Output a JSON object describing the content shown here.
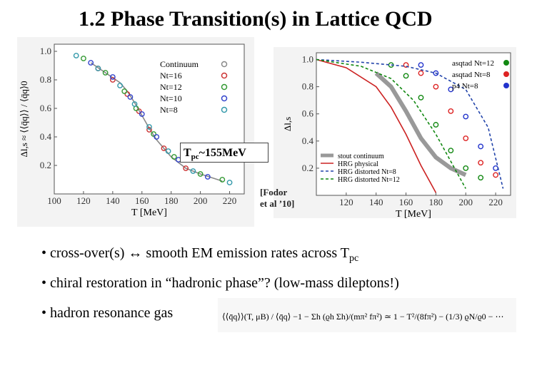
{
  "slide": {
    "title": "1.2 Phase Transition(s) in Lattice QCD",
    "tpc_label": "T",
    "tpc_sub": "pc",
    "tpc_value": "~155MeV",
    "citation_line1": "[Fodor",
    "citation_line2": "et al ’10]",
    "bullets": [
      {
        "text": "• cross-over(s) ↔ smooth EM emission rates across T",
        "sub": "pc"
      },
      {
        "text": "• chiral restoration in “hadronic phase”?  (low-mass dileptons!)"
      },
      {
        "text": "• hadron resonance gas"
      }
    ],
    "formula": "⟨⟨q̄q⟩⟩(T, μB) / ⟨q̄q⟩  −1 − Σh (ϱh Σh)/(mπ² fπ²)  ≃  1 − T²/(8fπ²) − (1/3) ϱN/ϱ0 − ⋯"
  },
  "chart_data": [
    {
      "type": "scatter",
      "ylabel": "Δl,s ≈ ⟨⟨q̄q⟩⟩ / ⟨q̄q⟩0",
      "xlabel": "T [MeV]",
      "xlim": [
        100,
        230
      ],
      "ylim": [
        0,
        1.05
      ],
      "x_ticks": [
        100,
        120,
        140,
        160,
        180,
        200,
        220
      ],
      "y_ticks": [
        0.2,
        0.4,
        0.6,
        0.8,
        1.0
      ],
      "legend": [
        "Continuum",
        "Nt=16",
        "Nt=12",
        "Nt=10",
        "Nt=8"
      ],
      "series": [
        {
          "name": "Continuum",
          "color": "#888888",
          "x": [
            125,
            135,
            145,
            150,
            155,
            160,
            165,
            170,
            180,
            190,
            200,
            215
          ],
          "y": [
            0.92,
            0.85,
            0.78,
            0.72,
            0.64,
            0.55,
            0.46,
            0.38,
            0.26,
            0.18,
            0.14,
            0.09
          ]
        },
        {
          "name": "Nt=16",
          "color": "#cc3333",
          "x": [
            130,
            140,
            150,
            158,
            165,
            175,
            190
          ],
          "y": [
            0.88,
            0.8,
            0.7,
            0.58,
            0.45,
            0.32,
            0.18
          ]
        },
        {
          "name": "Nt=12",
          "color": "#339933",
          "x": [
            120,
            135,
            148,
            156,
            168,
            182,
            200,
            215
          ],
          "y": [
            0.95,
            0.85,
            0.72,
            0.6,
            0.42,
            0.26,
            0.14,
            0.1
          ]
        },
        {
          "name": "Nt=10",
          "color": "#3344cc",
          "x": [
            125,
            140,
            152,
            160,
            170,
            185,
            205
          ],
          "y": [
            0.92,
            0.82,
            0.68,
            0.56,
            0.4,
            0.24,
            0.12
          ]
        },
        {
          "name": "Nt=8",
          "color": "#3399aa",
          "x": [
            115,
            130,
            145,
            155,
            165,
            178,
            195,
            220
          ],
          "y": [
            0.97,
            0.88,
            0.76,
            0.63,
            0.47,
            0.3,
            0.16,
            0.08
          ]
        }
      ]
    },
    {
      "type": "line",
      "ylabel": "Δl,s",
      "xlabel": "T [MeV]",
      "xlim": [
        100,
        230
      ],
      "ylim": [
        0,
        1.05
      ],
      "x_ticks": [
        120,
        140,
        160,
        180,
        200,
        220
      ],
      "y_ticks": [
        0.2,
        0.4,
        0.6,
        0.8,
        1.0
      ],
      "legend_top": [
        "asqtad Nt=12",
        "asqtad Nt=8",
        "p4 Nt=8"
      ],
      "legend_bottom": [
        "stout continuum",
        "HRG physical",
        "HRG distorted Nt=8",
        "HRG distorted Nt=12"
      ],
      "series": [
        {
          "name": "asqtad Nt=12",
          "color": "#118811",
          "x": [
            150,
            160,
            170,
            180,
            190,
            200,
            210
          ],
          "y": [
            0.96,
            0.88,
            0.72,
            0.52,
            0.33,
            0.2,
            0.13
          ]
        },
        {
          "name": "asqtad Nt=8",
          "color": "#dd2222",
          "x": [
            160,
            170,
            180,
            190,
            200,
            210,
            220
          ],
          "y": [
            0.96,
            0.9,
            0.8,
            0.62,
            0.42,
            0.24,
            0.15
          ]
        },
        {
          "name": "p4 Nt=8",
          "color": "#2233cc",
          "x": [
            170,
            180,
            190,
            200,
            210,
            220
          ],
          "y": [
            0.96,
            0.9,
            0.78,
            0.58,
            0.36,
            0.2
          ]
        },
        {
          "name": "stout continuum",
          "color": "#999999",
          "x": [
            140,
            150,
            160,
            170,
            180,
            190,
            200
          ],
          "y": [
            0.9,
            0.8,
            0.62,
            0.42,
            0.28,
            0.2,
            0.15
          ]
        },
        {
          "name": "HRG physical",
          "color": "#cc2222",
          "x": [
            100,
            120,
            140,
            150,
            160,
            170,
            180
          ],
          "y": [
            1.0,
            0.94,
            0.8,
            0.65,
            0.45,
            0.22,
            0.02
          ]
        },
        {
          "name": "HRG distorted Nt=8",
          "color": "#2244aa",
          "x": [
            100,
            130,
            160,
            180,
            200,
            215,
            225
          ],
          "y": [
            1.0,
            0.98,
            0.95,
            0.9,
            0.78,
            0.5,
            0.05
          ]
        },
        {
          "name": "HRG distorted Nt=12",
          "color": "#118811",
          "x": [
            100,
            130,
            150,
            165,
            180,
            190,
            200
          ],
          "y": [
            1.0,
            0.95,
            0.86,
            0.7,
            0.45,
            0.25,
            0.05
          ]
        }
      ]
    }
  ]
}
